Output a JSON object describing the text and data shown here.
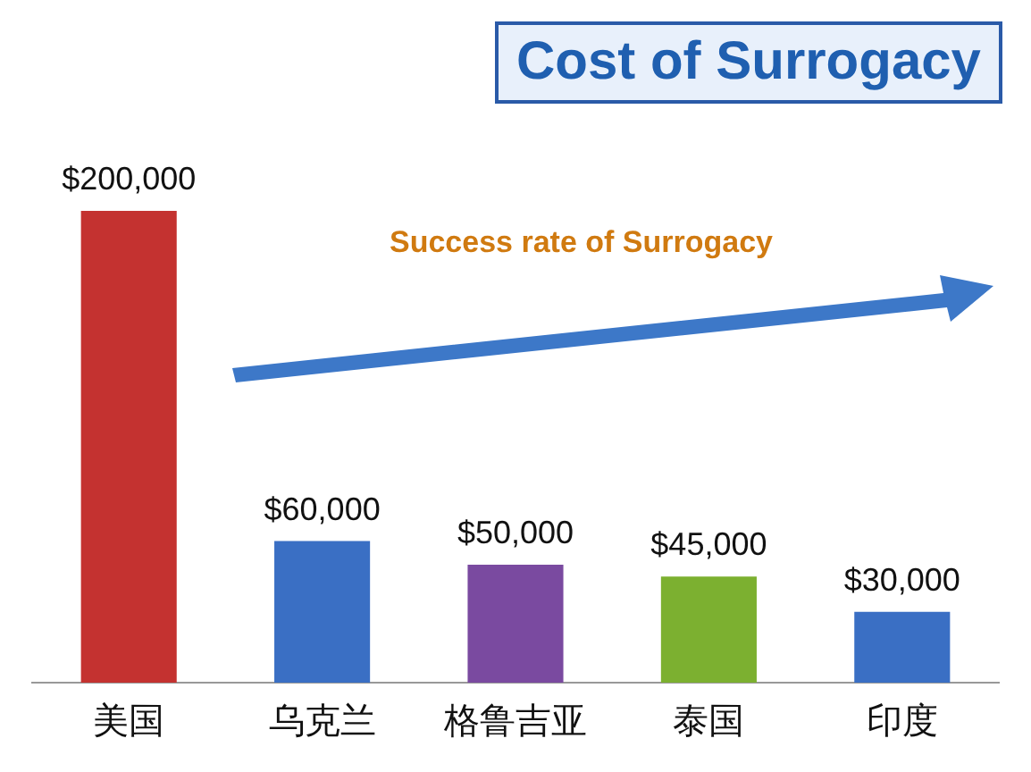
{
  "chart_data": {
    "type": "bar",
    "title": "Cost of Surrogacy",
    "categories": [
      "美国",
      "乌克兰",
      "格鲁吉亚",
      "泰国",
      "印度"
    ],
    "values": [
      200000,
      60000,
      50000,
      45000,
      30000
    ],
    "colors": [
      "#c43230",
      "#3a6fc4",
      "#7a4aa0",
      "#7cb030",
      "#3a6fc4"
    ],
    "value_labels": [
      "$200,000",
      "$60,000",
      "$50,000",
      "$45,000",
      "$30,000"
    ],
    "annotations": [
      "Success rate of Surrogacy"
    ],
    "grid": false,
    "legend": false
  }
}
